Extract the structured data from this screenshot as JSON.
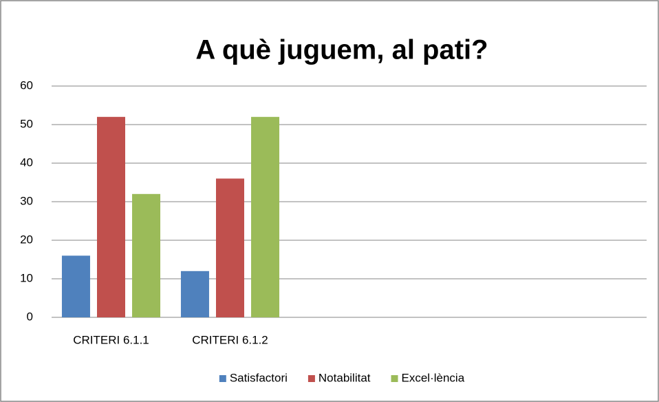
{
  "chart_data": {
    "type": "bar",
    "title": "A què juguem, al pati?",
    "categories": [
      "CRITERI 6.1.1",
      "CRITERI 6.1.2",
      null,
      null,
      null
    ],
    "series": [
      {
        "name": "Satisfactori",
        "color": "#4f81bd",
        "values": [
          16,
          12,
          null,
          null,
          null
        ]
      },
      {
        "name": "Notabilitat",
        "color": "#c0504d",
        "values": [
          52,
          36,
          null,
          null,
          null
        ]
      },
      {
        "name": "Excel·lència",
        "color": "#9bbb59",
        "values": [
          32,
          52,
          null,
          null,
          null
        ]
      }
    ],
    "ylim": [
      0,
      60
    ],
    "yticks": [
      0,
      10,
      20,
      30,
      40,
      50,
      60
    ],
    "grid": true,
    "legend": "bottom"
  }
}
